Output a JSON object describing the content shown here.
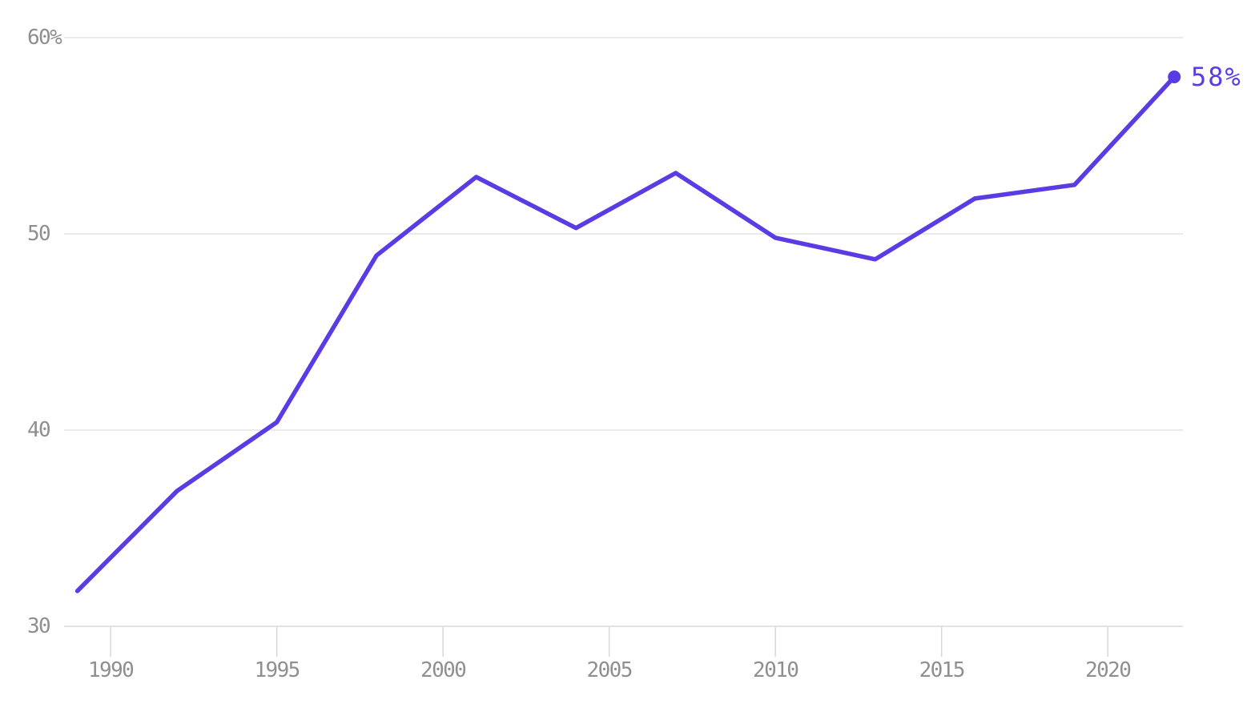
{
  "chart_data": {
    "type": "line",
    "title": "",
    "x": [
      1989,
      1992,
      1995,
      1998,
      2001,
      2004,
      2007,
      2010,
      2013,
      2016,
      2019,
      2022
    ],
    "series": [
      {
        "name": "percent",
        "values": [
          31.8,
          36.9,
          40.4,
          48.9,
          52.9,
          50.3,
          53.1,
          49.8,
          48.7,
          51.8,
          52.5,
          58
        ]
      }
    ],
    "end_label": "58%",
    "y_ticks": [
      {
        "value": 60,
        "label": "60%"
      },
      {
        "value": 50,
        "label": "50"
      },
      {
        "value": 40,
        "label": "40"
      },
      {
        "value": 30,
        "label": "30"
      }
    ],
    "x_ticks": [
      {
        "value": 1990,
        "label": "1990"
      },
      {
        "value": 1995,
        "label": "1995"
      },
      {
        "value": 2000,
        "label": "2000"
      },
      {
        "value": 2005,
        "label": "2005"
      },
      {
        "value": 2010,
        "label": "2010"
      },
      {
        "value": 2015,
        "label": "2015"
      },
      {
        "value": 2020,
        "label": "2020"
      }
    ],
    "xlim": [
      1988.6,
      2022.26
    ],
    "ylim": [
      30,
      60
    ],
    "grid": true,
    "legend": false,
    "colors": {
      "line": "#5B3CE4",
      "end_dot": "#5B3CE4",
      "end_label_text": "#5B3CE4",
      "grid": "#e4e4e4",
      "axis_tick": "#d8d8d8",
      "axis_text": "#8f8f8f",
      "background": "#ffffff"
    }
  }
}
